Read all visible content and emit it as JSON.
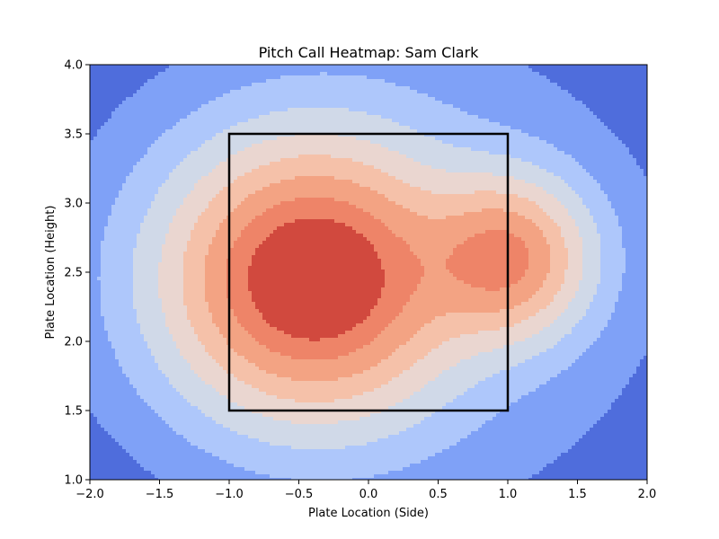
{
  "chart_data": {
    "type": "heatmap",
    "title": "Pitch Call Heatmap: Sam Clark",
    "xlabel": "Plate Location (Side)",
    "ylabel": "Plate Location (Height)",
    "xlim": [
      -2.0,
      2.0
    ],
    "ylim": [
      1.0,
      4.0
    ],
    "xticks": [
      "−2.0",
      "−1.5",
      "−1.0",
      "−0.5",
      "0.0",
      "0.5",
      "1.0",
      "1.5",
      "2.0"
    ],
    "xtick_values": [
      -2.0,
      -1.5,
      -1.0,
      -0.5,
      0.0,
      0.5,
      1.0,
      1.5,
      2.0
    ],
    "yticks": [
      "1.0",
      "1.5",
      "2.0",
      "2.5",
      "3.0",
      "3.5",
      "4.0"
    ],
    "ytick_values": [
      1.0,
      1.5,
      2.0,
      2.5,
      3.0,
      3.5,
      4.0
    ],
    "colormap": "coolwarm",
    "density_peaks": [
      {
        "x": -0.4,
        "y": 2.45,
        "weight": 1.0
      },
      {
        "x": 1.0,
        "y": 2.6,
        "weight": 0.62
      }
    ],
    "strike_zone": {
      "x": [
        -1.0,
        1.0
      ],
      "y": [
        1.5,
        3.5
      ],
      "color": "#000000"
    },
    "level_colors": [
      "#4f6ddc",
      "#7fa1f7",
      "#aec7fb",
      "#d0d9e8",
      "#ead6d0",
      "#f5c1a9",
      "#f3a383",
      "#ee8468",
      "#d1493e"
    ],
    "grid": false,
    "legend": "none"
  }
}
